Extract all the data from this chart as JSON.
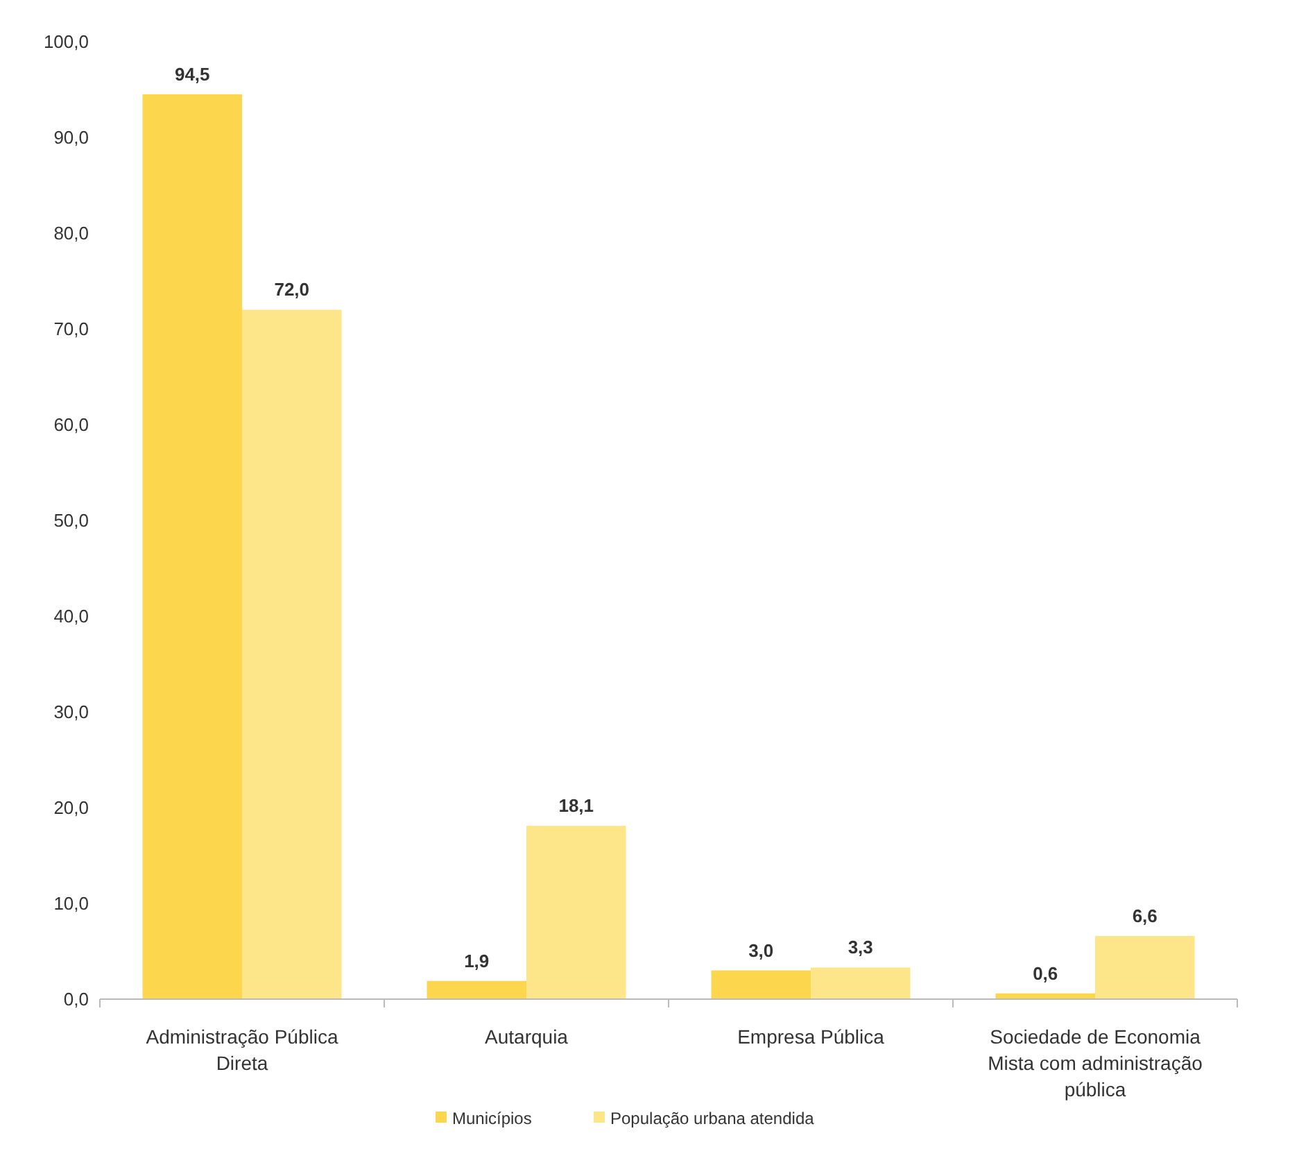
{
  "chart_data": {
    "type": "bar",
    "categories": [
      "Administração Pública Direta",
      "Autarquia",
      "Empresa Pública",
      "Sociedade de Economia Mista com administração pública"
    ],
    "series": [
      {
        "name": "Municípios",
        "color": "#fcd64c",
        "values": [
          94.5,
          1.9,
          3.0,
          0.6
        ],
        "value_labels": [
          "94,5",
          "1,9",
          "3,0",
          "0,6"
        ]
      },
      {
        "name": "População urbana atendida",
        "color": "#fde589",
        "values": [
          72.0,
          18.1,
          3.3,
          6.6
        ],
        "value_labels": [
          "72,0",
          "18,1",
          "3,3",
          "6,6"
        ]
      }
    ],
    "ylim": [
      0,
      100
    ],
    "yticks": [
      {
        "value": 0,
        "label": "0,0"
      },
      {
        "value": 10,
        "label": "10,0"
      },
      {
        "value": 20,
        "label": "20,0"
      },
      {
        "value": 30,
        "label": "30,0"
      },
      {
        "value": 40,
        "label": "40,0"
      },
      {
        "value": 50,
        "label": "50,0"
      },
      {
        "value": 60,
        "label": "60,0"
      },
      {
        "value": 70,
        "label": "70,0"
      },
      {
        "value": 80,
        "label": "80,0"
      },
      {
        "value": 90,
        "label": "90,0"
      },
      {
        "value": 100,
        "label": "100,0"
      }
    ],
    "grid": false,
    "legend": "bottom"
  }
}
